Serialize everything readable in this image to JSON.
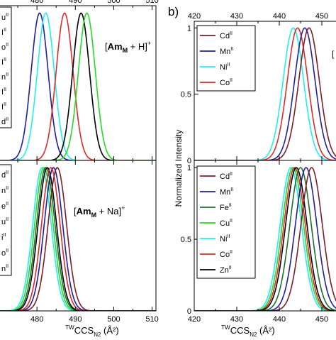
{
  "panel_b_label": "b)",
  "x_axis_title": {
    "base": "CCS",
    "pre": "TW",
    "sub": "N2",
    "post": " (Å²)"
  },
  "y_axis_title": "Normalized Intensity",
  "panel_b_top_fragment": "[",
  "colors": {
    "Cd": "#7a1f2b",
    "Mn": "#1f1f9e",
    "Fe": "#1e6e2e",
    "Cu": "#22dd22",
    "Ni": "#22eeee",
    "Co": "#dd2a2a",
    "Zn": "#000000"
  },
  "chart_data": [
    {
      "id": "a-top",
      "type": "line",
      "title": "[AmM + H]+",
      "annotation": {
        "pre": "[",
        "bold": "Am",
        "sub": "M",
        "post": " + H]",
        "sup": "+"
      },
      "xlim": [
        470,
        511
      ],
      "ylim": [
        0,
        1.05
      ],
      "x_ticks": [
        "480",
        "490",
        "500",
        "510"
      ],
      "y_ticks": [],
      "legend_visible": [
        "u",
        "I",
        "o",
        "I",
        "n",
        "I",
        "I",
        "d"
      ],
      "series": [
        {
          "metal": "Mn",
          "center": 480.7,
          "sigma": 2.2
        },
        {
          "metal": "Ni",
          "center": 482.3,
          "sigma": 2.2
        },
        {
          "metal": "Co",
          "center": 487.2,
          "sigma": 2.2
        },
        {
          "metal": "Zn",
          "center": 491.5,
          "sigma": 2.2
        },
        {
          "metal": "Cu",
          "center": 493.0,
          "sigma": 2.2
        }
      ]
    },
    {
      "id": "a-bottom",
      "type": "line",
      "title": "[AmM + Na]+",
      "annotation": {
        "pre": "[",
        "bold": "Am",
        "sub": "M",
        "post": " + Na]",
        "sup": "+"
      },
      "xlim": [
        470,
        511
      ],
      "ylim": [
        0,
        1.05
      ],
      "x_ticks": [
        "480",
        "490",
        "500",
        "510"
      ],
      "y_ticks": [],
      "legend_visible": [
        "d",
        "n",
        "e",
        "u",
        "i",
        "o",
        "n"
      ],
      "series": [
        {
          "metal": "Ni",
          "center": 481.3,
          "sigma": 2.4
        },
        {
          "metal": "Cu",
          "center": 481.8,
          "sigma": 2.4
        },
        {
          "metal": "Fe",
          "center": 482.3,
          "sigma": 2.4
        },
        {
          "metal": "Zn",
          "center": 482.7,
          "sigma": 2.4
        },
        {
          "metal": "Co",
          "center": 483.6,
          "sigma": 2.4
        },
        {
          "metal": "Mn",
          "center": 484.3,
          "sigma": 2.4
        },
        {
          "metal": "Cd",
          "center": 485.3,
          "sigma": 2.4
        }
      ]
    },
    {
      "id": "b-top",
      "type": "line",
      "xlim": [
        420,
        455
      ],
      "ylim": [
        0,
        1.05
      ],
      "x_ticks": [
        "420",
        "430",
        "440",
        "450"
      ],
      "y_ticks": [
        "0",
        "0.5",
        "1"
      ],
      "legend": [
        {
          "metal": "Cd",
          "text": "Cd",
          "sup": "II"
        },
        {
          "metal": "Mn",
          "text": "Mn",
          "sup": "II"
        },
        {
          "metal": "Ni",
          "text": "Ni",
          "sup": "II"
        },
        {
          "metal": "Co",
          "text": "Co",
          "sup": "II"
        }
      ],
      "series": [
        {
          "metal": "Ni",
          "center": 443.3,
          "sigma": 2.4
        },
        {
          "metal": "Co",
          "center": 444.3,
          "sigma": 2.4
        },
        {
          "metal": "Mn",
          "center": 446.0,
          "sigma": 2.4
        },
        {
          "metal": "Cd",
          "center": 447.0,
          "sigma": 2.4
        }
      ]
    },
    {
      "id": "b-bottom",
      "type": "line",
      "xlim": [
        420,
        455
      ],
      "ylim": [
        0,
        1.05
      ],
      "x_ticks": [
        "420",
        "430",
        "440",
        "450"
      ],
      "y_ticks": [
        "0",
        "0.5",
        "1"
      ],
      "legend": [
        {
          "metal": "Cd",
          "text": "Cd",
          "sup": "II"
        },
        {
          "metal": "Mn",
          "text": "Mn",
          "sup": "II"
        },
        {
          "metal": "Fe",
          "text": "Fe",
          "sup": "II"
        },
        {
          "metal": "Cu",
          "text": "Cu",
          "sup": "II"
        },
        {
          "metal": "Ni",
          "text": "Ni",
          "sup": "II"
        },
        {
          "metal": "Co",
          "text": "Co",
          "sup": "II"
        },
        {
          "metal": "Zn",
          "text": "Zn",
          "sup": "II"
        }
      ],
      "series": [
        {
          "metal": "Ni",
          "center": 442.7,
          "sigma": 2.5
        },
        {
          "metal": "Cu",
          "center": 443.2,
          "sigma": 2.5
        },
        {
          "metal": "Co",
          "center": 443.6,
          "sigma": 2.5
        },
        {
          "metal": "Zn",
          "center": 444.0,
          "sigma": 2.5
        },
        {
          "metal": "Fe",
          "center": 445.0,
          "sigma": 2.5
        },
        {
          "metal": "Mn",
          "center": 446.3,
          "sigma": 2.5
        },
        {
          "metal": "Cd",
          "center": 447.6,
          "sigma": 2.5
        }
      ]
    }
  ]
}
